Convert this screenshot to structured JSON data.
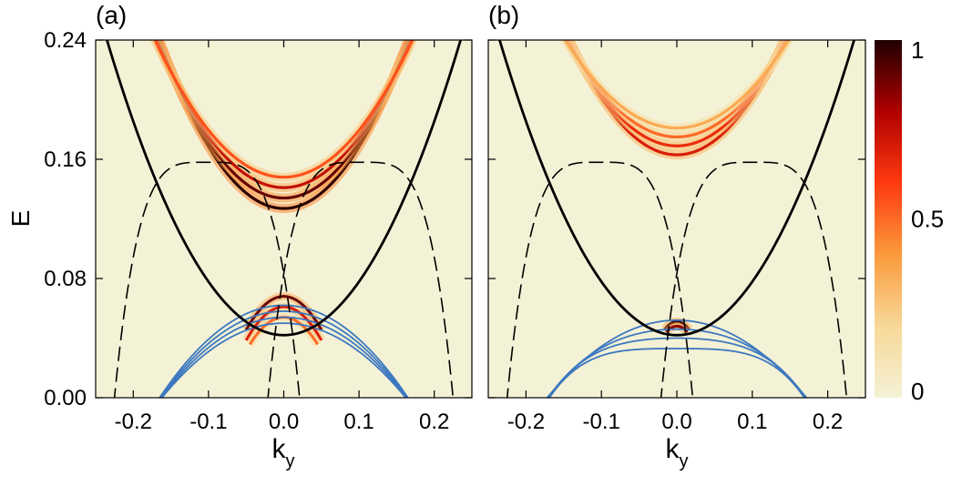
{
  "chart_data": {
    "type": "heatmap",
    "panels": [
      {
        "label": "(a)",
        "xlabel": "k",
        "xlabel_sub": "y",
        "ylabel": "E",
        "xlim": [
          -0.25,
          0.25
        ],
        "ylim": [
          0.0,
          0.24
        ],
        "xticks": [
          -0.2,
          -0.1,
          0.0,
          0.1,
          0.2
        ],
        "xtick_labels": [
          "-0.2",
          "-0.1",
          "0.0",
          "0.1",
          "0.2"
        ],
        "yticks": [
          0.0,
          0.08,
          0.16,
          0.24
        ],
        "ytick_labels": [
          "0.00",
          "0.08",
          "0.16",
          "0.24"
        ],
        "solid_band": {
          "vertex": 0.042,
          "k_at_top": 0.235
        },
        "dashed_bands": {
          "peak_E": 0.158,
          "peak_k": 0.102,
          "E_at_zero": 0.0,
          "k_at_zero": 0.225
        },
        "conduction_subbands": [
          {
            "min": 0.127,
            "k_at_top": 0.165,
            "intensity": 0.98
          },
          {
            "min": 0.134,
            "k_at_top": 0.167,
            "intensity": 0.9
          },
          {
            "min": 0.141,
            "k_at_top": 0.169,
            "intensity": 0.75
          },
          {
            "min": 0.148,
            "k_at_top": 0.171,
            "intensity": 0.55
          }
        ],
        "local_states": [
          {
            "max": 0.068,
            "curvature": 9.0,
            "k_half": 0.05,
            "intensity": 0.9
          },
          {
            "max": 0.061,
            "curvature": 9.0,
            "k_half": 0.05,
            "intensity": 0.7
          },
          {
            "max": 0.054,
            "curvature": 9.0,
            "k_half": 0.045,
            "intensity": 0.5
          }
        ],
        "blue_bands": [
          {
            "max": 0.062,
            "k_zero": 0.165
          },
          {
            "max": 0.058,
            "k_zero": 0.164
          },
          {
            "max": 0.054,
            "k_zero": 0.163
          },
          {
            "max": 0.05,
            "k_zero": 0.162
          }
        ]
      },
      {
        "label": "(b)",
        "xlabel": "k",
        "xlabel_sub": "y",
        "ylabel": "",
        "xlim": [
          -0.25,
          0.25
        ],
        "ylim": [
          0.0,
          0.24
        ],
        "xticks": [
          -0.2,
          -0.1,
          0.0,
          0.1,
          0.2
        ],
        "xtick_labels": [
          "-0.2",
          "-0.1",
          "0.0",
          "0.1",
          "0.2"
        ],
        "yticks": [
          0.0,
          0.08,
          0.16,
          0.24
        ],
        "ytick_labels": [],
        "solid_band": {
          "vertex": 0.042,
          "k_at_top": 0.235
        },
        "dashed_bands": {
          "peak_E": 0.158,
          "peak_k": 0.102,
          "E_at_zero": 0.0,
          "k_at_zero": 0.225
        },
        "conduction_subbands": [
          {
            "min": 0.163,
            "k_at_top": 0.142,
            "intensity": 0.7
          },
          {
            "min": 0.169,
            "k_at_top": 0.144,
            "intensity": 0.65
          },
          {
            "min": 0.175,
            "k_at_top": 0.146,
            "intensity": 0.5
          },
          {
            "min": 0.181,
            "k_at_top": 0.148,
            "intensity": 0.35
          }
        ],
        "local_states": [
          {
            "max": 0.051,
            "curvature": 20.0,
            "k_half": 0.016,
            "intensity": 0.95
          },
          {
            "max": 0.048,
            "curvature": 20.0,
            "k_half": 0.014,
            "intensity": 0.85
          }
        ],
        "blue_bands": [
          {
            "max": 0.052,
            "k_zero": 0.172,
            "flat": 0.0
          },
          {
            "max": 0.046,
            "k_zero": 0.171,
            "flat": 0.3
          },
          {
            "max": 0.04,
            "k_zero": 0.17,
            "flat": 0.6
          },
          {
            "max": 0.033,
            "k_zero": 0.169,
            "flat": 0.9
          }
        ]
      }
    ],
    "colorbar": {
      "range": [
        0,
        1
      ],
      "tick_values": [
        0,
        0.5,
        1
      ],
      "tick_labels": [
        "0",
        "0.5",
        "1"
      ]
    },
    "colors": {
      "background": "#f4f2d6",
      "blue_band": "#3c78c0",
      "solid_band": "#000000",
      "dashed_band": "#000000",
      "colormap": [
        "#f4f2d6",
        "#f8d898",
        "#fa9a3c",
        "#ff3a10",
        "#b00000",
        "#200000"
      ]
    }
  }
}
